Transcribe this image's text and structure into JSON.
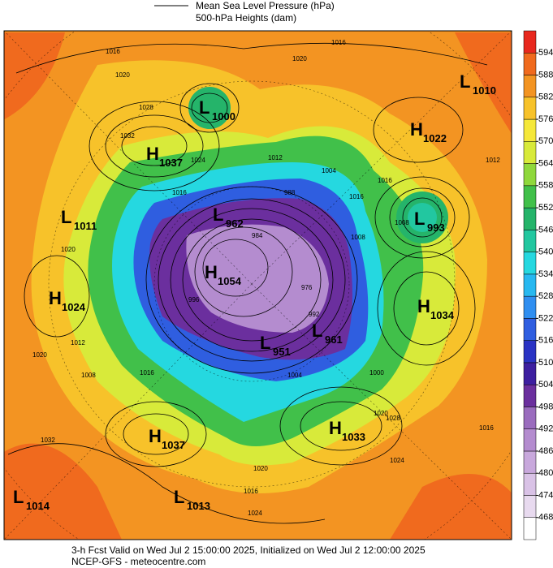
{
  "header": {
    "line_label": "Mean Sea Level Pressure (hPa)",
    "fill_label": "500-hPa Heights (dam)"
  },
  "colorbar": {
    "ticks": [
      468,
      474,
      480,
      486,
      492,
      498,
      504,
      510,
      516,
      522,
      528,
      534,
      540,
      546,
      552,
      558,
      564,
      570,
      576,
      582,
      588,
      594
    ],
    "range": [
      462,
      600
    ],
    "colors": [
      "#ffffff",
      "#e8daef",
      "#d9c2e6",
      "#c8a8dc",
      "#b48ccf",
      "#9a6cbe",
      "#6b2f9e",
      "#3d1fa0",
      "#2a33c4",
      "#2f5ee0",
      "#2f8ef0",
      "#27b8f0",
      "#25d8e0",
      "#22c7a0",
      "#25b46a",
      "#41c04a",
      "#8fd83c",
      "#d8ea3a",
      "#f5e83a",
      "#f7c22a",
      "#f39422",
      "#f06a1e",
      "#e8281e"
    ]
  },
  "systems": [
    {
      "type": "L",
      "value": "1000"
    },
    {
      "type": "H",
      "value": "1037"
    },
    {
      "type": "H",
      "value": "1022"
    },
    {
      "type": "L",
      "value": "1010"
    },
    {
      "type": "L",
      "value": "1011"
    },
    {
      "type": "L",
      "value": "962"
    },
    {
      "type": "L",
      "value": "993"
    },
    {
      "type": "H",
      "value": "1054"
    },
    {
      "type": "H",
      "value": "1024"
    },
    {
      "type": "H",
      "value": "1034"
    },
    {
      "type": "L",
      "value": "951"
    },
    {
      "type": "L",
      "value": "961"
    },
    {
      "type": "H",
      "value": "1033"
    },
    {
      "type": "H",
      "value": "1037"
    },
    {
      "type": "L",
      "value": "1014"
    },
    {
      "type": "L",
      "value": "1013"
    }
  ],
  "contour_labels": [
    "1016",
    "1020",
    "1028",
    "1032",
    "1024",
    "1012",
    "1004",
    "1016",
    "1008",
    "1016",
    "1020",
    "1012",
    "1008",
    "1016",
    "1016",
    "1020",
    "1024",
    "1028",
    "1020",
    "1024",
    "1020",
    "1016",
    "1032",
    "1012",
    "1016",
    "1020",
    "1004",
    "1016",
    "1008",
    "996",
    "976",
    "984",
    "988",
    "992",
    "1000"
  ],
  "footer": {
    "line1": "3-h Fcst Valid on Wed Jul  2 15:00:00 2025, Initialized on Wed Jul  2 12:00:00 2025",
    "line2": "NCEP-GFS  - meteocentre.com"
  }
}
